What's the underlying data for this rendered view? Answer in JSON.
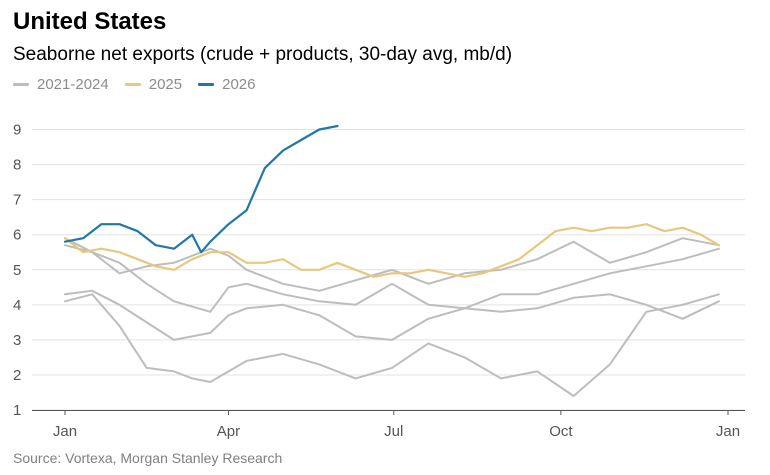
{
  "header": {
    "title": "United States",
    "subtitle": "Seaborne net exports (crude + products, 30-day avg, mb/d)",
    "source": "Source: Vortexa, Morgan Stanley Research"
  },
  "legend": [
    {
      "label": "2021-2024",
      "color": "#bdbdbd"
    },
    {
      "label": "2025",
      "color": "#e9c77f"
    },
    {
      "label": "2026",
      "color": "#1f78a8"
    }
  ],
  "chart_data": {
    "type": "line",
    "title": "United States",
    "subtitle": "Seaborne net exports (crude + products, 30-day avg, mb/d)",
    "ylim": [
      1,
      9.5
    ],
    "xlim": [
      0,
      365
    ],
    "y_ticks": [
      "1",
      "2",
      "3",
      "4",
      "5",
      "6",
      "7",
      "8",
      "9"
    ],
    "x_ticks": [
      {
        "label": "Jan",
        "day": 0
      },
      {
        "label": "Apr",
        "day": 90
      },
      {
        "label": "Jul",
        "day": 181
      },
      {
        "label": "Oct",
        "day": 273
      },
      {
        "label": "Jan",
        "day": 365
      }
    ],
    "grid": true,
    "legend_position": "top-left",
    "series": [
      {
        "name": "2021-2024",
        "color": "#bdbdbd",
        "x": [
          0,
          15,
          30,
          45,
          60,
          70,
          80,
          90,
          100,
          120,
          140,
          160,
          180,
          200,
          220,
          240,
          260,
          280,
          300,
          320,
          340,
          360
        ],
        "y": [
          4.1,
          4.3,
          3.4,
          2.2,
          2.1,
          1.9,
          1.8,
          2.1,
          2.4,
          2.6,
          2.3,
          1.9,
          2.2,
          2.9,
          2.5,
          1.9,
          2.1,
          1.4,
          2.3,
          3.8,
          4.0,
          4.3
        ]
      },
      {
        "name": "2021-2024",
        "color": "#bdbdbd",
        "x": [
          0,
          15,
          30,
          45,
          60,
          80,
          90,
          100,
          120,
          140,
          160,
          180,
          200,
          220,
          240,
          260,
          280,
          300,
          320,
          340,
          360
        ],
        "y": [
          4.3,
          4.4,
          4.0,
          3.5,
          3.0,
          3.2,
          3.7,
          3.9,
          4.0,
          3.7,
          3.1,
          3.0,
          3.6,
          3.9,
          3.8,
          3.9,
          4.2,
          4.3,
          4.0,
          3.6,
          4.1
        ]
      },
      {
        "name": "2021-2024",
        "color": "#bdbdbd",
        "x": [
          0,
          15,
          30,
          45,
          60,
          80,
          90,
          100,
          120,
          140,
          160,
          180,
          200,
          220,
          240,
          260,
          280,
          300,
          320,
          340,
          360
        ],
        "y": [
          5.7,
          5.5,
          5.2,
          4.6,
          4.1,
          3.8,
          4.5,
          4.6,
          4.3,
          4.1,
          4.0,
          4.6,
          4.0,
          3.9,
          4.3,
          4.3,
          4.6,
          4.9,
          5.1,
          5.3,
          5.6
        ]
      },
      {
        "name": "2021-2024",
        "color": "#bdbdbd",
        "x": [
          0,
          15,
          30,
          45,
          60,
          80,
          90,
          100,
          120,
          140,
          160,
          180,
          200,
          220,
          240,
          260,
          280,
          300,
          320,
          340,
          360
        ],
        "y": [
          5.9,
          5.5,
          4.9,
          5.1,
          5.2,
          5.6,
          5.4,
          5.0,
          4.6,
          4.4,
          4.7,
          5.0,
          4.6,
          4.9,
          5.0,
          5.3,
          5.8,
          5.2,
          5.5,
          5.9,
          5.7
        ]
      },
      {
        "name": "2025",
        "color": "#e9c77f",
        "x": [
          0,
          10,
          20,
          30,
          40,
          50,
          60,
          70,
          80,
          90,
          100,
          110,
          120,
          130,
          140,
          150,
          160,
          170,
          180,
          190,
          200,
          210,
          220,
          230,
          240,
          250,
          260,
          270,
          280,
          290,
          300,
          310,
          320,
          330,
          340,
          350,
          360
        ],
        "y": [
          5.9,
          5.5,
          5.6,
          5.5,
          5.3,
          5.1,
          5.0,
          5.3,
          5.5,
          5.5,
          5.2,
          5.2,
          5.3,
          5.0,
          5.0,
          5.2,
          5.0,
          4.8,
          4.9,
          4.9,
          5.0,
          4.9,
          4.8,
          4.9,
          5.1,
          5.3,
          5.7,
          6.1,
          6.2,
          6.1,
          6.2,
          6.2,
          6.3,
          6.1,
          6.2,
          6.0,
          5.7
        ]
      },
      {
        "name": "2026",
        "color": "#1f78a8",
        "x": [
          0,
          10,
          20,
          30,
          40,
          50,
          60,
          70,
          75,
          80,
          90,
          100,
          110,
          120,
          130,
          140,
          150
        ],
        "y": [
          5.8,
          5.9,
          6.3,
          6.3,
          6.1,
          5.7,
          5.6,
          6.0,
          5.5,
          5.8,
          6.3,
          6.7,
          7.9,
          8.4,
          8.7,
          9.0,
          9.1
        ]
      }
    ]
  }
}
